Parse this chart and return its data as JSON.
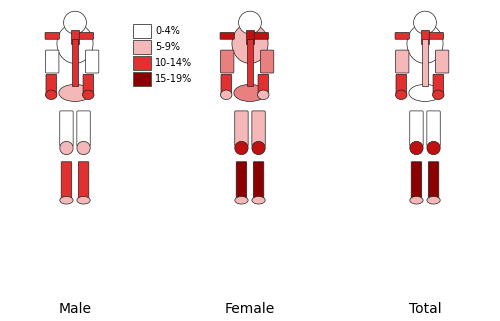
{
  "title": "",
  "groups": [
    "Male",
    "Female",
    "Total"
  ],
  "legend": {
    "labels": [
      "0-4%",
      "5-9%",
      "10-14%",
      "15-19%"
    ],
    "colors": [
      "#ffffff",
      "#f4b8b8",
      "#e03030",
      "#8b0000"
    ]
  },
  "colors": {
    "white": "#ffffff",
    "very_light_red": "#f9dada",
    "light_red": "#f4b8b8",
    "pink": "#e88080",
    "red": "#e03030",
    "dark_red": "#c01010",
    "very_dark_red": "#8b0000",
    "outline": "#333333",
    "bone": "#f0f0f0",
    "skin_light": "#fce8e8"
  },
  "male_regions": {
    "head": "white",
    "neck": "red",
    "clavicle_left": "red",
    "clavicle_right": "red",
    "shoulder_left": "white",
    "shoulder_right": "white",
    "upper_arm_left": "white",
    "upper_arm_right": "white",
    "forearm_left": "red",
    "forearm_right": "red",
    "hand_left": "red",
    "hand_right": "red",
    "thorax": "white",
    "spine": "red",
    "pelvis": "light_red",
    "upper_leg_left": "white",
    "upper_leg_right": "white",
    "knee_left": "light_red",
    "knee_right": "light_red",
    "lower_leg_left": "red",
    "lower_leg_right": "red",
    "foot_left": "light_red",
    "foot_right": "light_red"
  },
  "female_regions": {
    "head": "white",
    "neck": "dark_red",
    "clavicle_left": "dark_red",
    "clavicle_right": "dark_red",
    "shoulder_left": "light_red",
    "shoulder_right": "light_red",
    "upper_arm_left": "pink",
    "upper_arm_right": "pink",
    "forearm_left": "red",
    "forearm_right": "red",
    "hand_left": "light_red",
    "hand_right": "light_red",
    "thorax": "light_red",
    "spine": "red",
    "pelvis": "pink",
    "upper_leg_left": "light_red",
    "upper_leg_right": "light_red",
    "knee_left": "dark_red",
    "knee_right": "dark_red",
    "lower_leg_left": "very_dark_red",
    "lower_leg_right": "very_dark_red",
    "foot_left": "light_red",
    "foot_right": "light_red"
  },
  "total_regions": {
    "head": "white",
    "neck": "red",
    "clavicle_left": "red",
    "clavicle_right": "red",
    "shoulder_left": "light_red",
    "shoulder_right": "light_red",
    "upper_arm_left": "light_red",
    "upper_arm_right": "light_red",
    "forearm_left": "red",
    "forearm_right": "red",
    "hand_left": "red",
    "hand_right": "red",
    "thorax": "white",
    "spine": "light_red",
    "pelvis": "white",
    "upper_leg_left": "white",
    "upper_leg_right": "white",
    "knee_left": "dark_red",
    "knee_right": "dark_red",
    "lower_leg_left": "very_dark_red",
    "lower_leg_right": "very_dark_red",
    "foot_left": "light_red",
    "foot_right": "light_red"
  },
  "background": "#ffffff"
}
